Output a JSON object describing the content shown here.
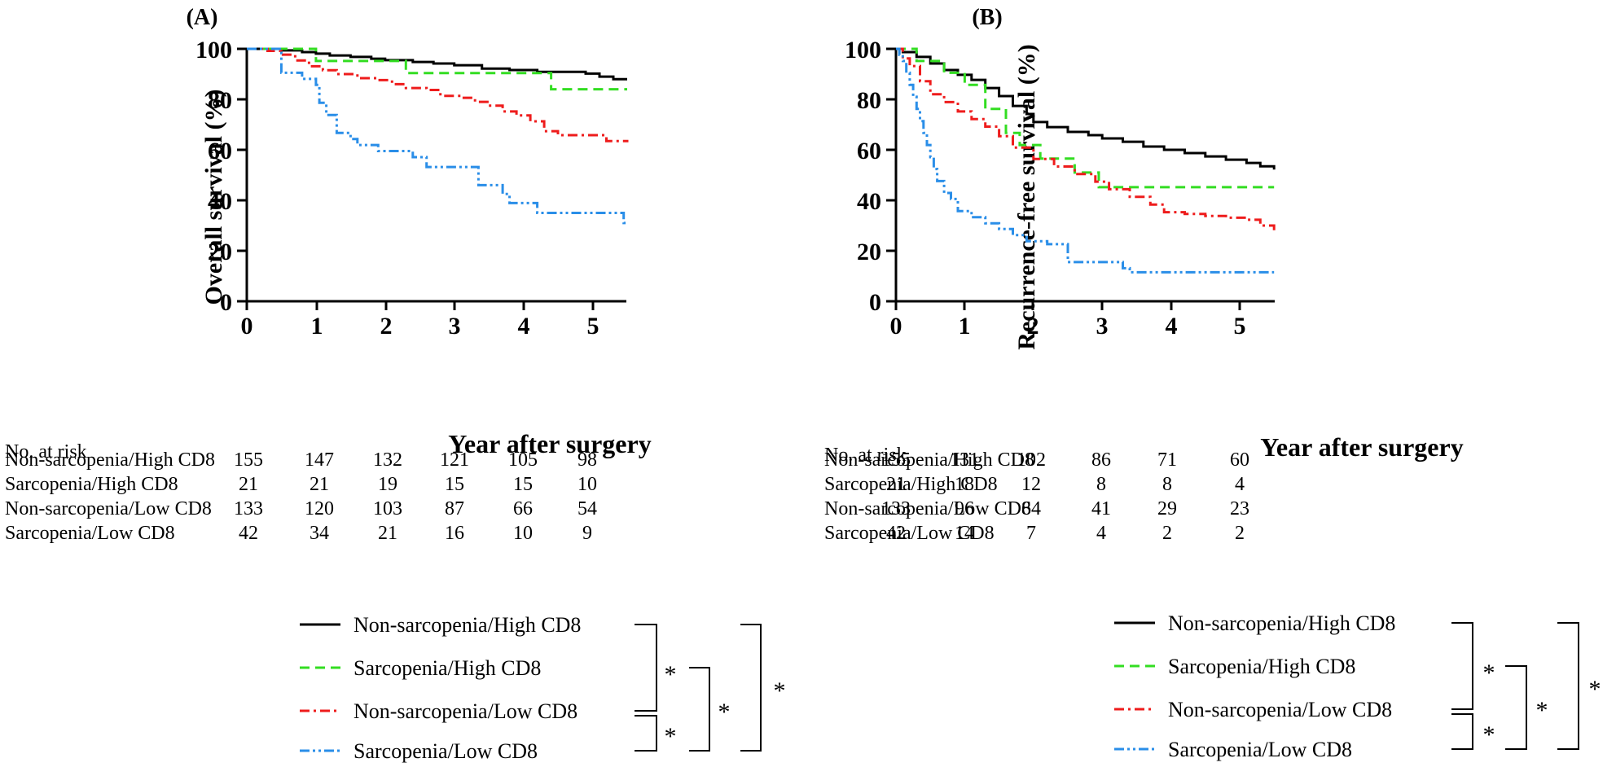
{
  "colors": {
    "axis": "#000000",
    "nonsarc_high": "#000000",
    "sarc_high": "#33dd22",
    "nonsarc_low": "#ee1c1c",
    "sarc_low": "#2a8ee8"
  },
  "risk_header": "No. at risk",
  "significance_mark": "*",
  "chart_data": [
    {
      "type": "line",
      "subtype": "kaplan-meier",
      "panel_label": "(A)",
      "xlabel": "Year after surgery",
      "ylabel": "Overall survival (%)",
      "xlim": [
        0,
        5.5
      ],
      "ylim": [
        0,
        100
      ],
      "x_ticks": [
        "0",
        "1",
        "2",
        "3",
        "4",
        "5"
      ],
      "y_ticks": [
        "0",
        "20",
        "40",
        "60",
        "80",
        "100"
      ],
      "series": [
        {
          "name": "Non-sarcopenia/High CD8",
          "style": "solid",
          "color": "#000000",
          "x": [
            0,
            0.3,
            0.5,
            0.8,
            1.0,
            1.2,
            1.5,
            1.8,
            2.0,
            2.4,
            2.7,
            3.0,
            3.4,
            3.8,
            4.2,
            4.7,
            4.9,
            5.1,
            5.3,
            5.5
          ],
          "y": [
            100,
            100,
            99.4,
            98.7,
            98.1,
            97.4,
            96.8,
            96.1,
            95.5,
            94.8,
            94.2,
            93.5,
            92.2,
            91.6,
            90.9,
            90.9,
            90.2,
            89.0,
            88.0,
            88.0
          ]
        },
        {
          "name": "Sarcopenia/High CD8",
          "style": "dash",
          "color": "#33dd22",
          "x": [
            0,
            1.0,
            1.0,
            2.3,
            2.3,
            4.4,
            4.4,
            5.5
          ],
          "y": [
            100,
            100,
            95.2,
            95.2,
            90.4,
            90.4,
            84.0,
            84.0
          ]
        },
        {
          "name": "Non-sarcopenia/Low CD8",
          "style": "dashdot",
          "color": "#ee1c1c",
          "x": [
            0,
            0.3,
            0.5,
            0.7,
            0.9,
            1.1,
            1.3,
            1.6,
            1.9,
            2.1,
            2.3,
            2.6,
            2.8,
            3.1,
            3.3,
            3.5,
            3.7,
            3.9,
            4.1,
            4.3,
            4.5,
            5.2,
            5.5
          ],
          "y": [
            100,
            99.2,
            97.7,
            95.4,
            93.1,
            91.5,
            90.0,
            88.4,
            87.6,
            86.0,
            84.5,
            83.7,
            81.4,
            80.6,
            79.0,
            77.5,
            75.2,
            73.6,
            71.3,
            67.4,
            65.8,
            63.5,
            63.0
          ]
        },
        {
          "name": "Sarcopenia/Low CD8",
          "style": "dashdotdot",
          "color": "#2a8ee8",
          "x": [
            0,
            0.4,
            0.5,
            0.8,
            1.0,
            1.05,
            1.15,
            1.3,
            1.5,
            1.6,
            1.9,
            2.3,
            2.4,
            2.6,
            3.1,
            3.35,
            3.6,
            3.7,
            3.8,
            4.0,
            4.2,
            5.4,
            5.45,
            5.5
          ],
          "y": [
            100,
            100,
            90.5,
            88.1,
            85.7,
            78.6,
            73.8,
            66.7,
            64.3,
            61.9,
            59.5,
            59.5,
            57.1,
            53.2,
            53.2,
            46.0,
            46.0,
            42.5,
            38.9,
            38.9,
            35.0,
            35.0,
            31.0,
            31.0
          ]
        }
      ],
      "risk_table": {
        "rows": [
          {
            "label": "Non-sarcopenia/High CD8",
            "values": [
              "155",
              "147",
              "132",
              "121",
              "105",
              "98"
            ]
          },
          {
            "label": "Sarcopenia/High CD8",
            "values": [
              "21",
              "21",
              "19",
              "15",
              "15",
              "10"
            ]
          },
          {
            "label": "Non-sarcopenia/Low CD8",
            "values": [
              "133",
              "120",
              "103",
              "87",
              "66",
              "54"
            ]
          },
          {
            "label": "Sarcopenia/Low CD8",
            "values": [
              "42",
              "34",
              "21",
              "16",
              "10",
              "9"
            ]
          }
        ]
      }
    },
    {
      "type": "line",
      "subtype": "kaplan-meier",
      "panel_label": "(B)",
      "xlabel": "Year after surgery",
      "ylabel": "Recurrence-free survival (%)",
      "xlim": [
        0,
        5.5
      ],
      "ylim": [
        0,
        100
      ],
      "x_ticks": [
        "0",
        "1",
        "2",
        "3",
        "4",
        "5"
      ],
      "y_ticks": [
        "0",
        "20",
        "40",
        "60",
        "80",
        "100"
      ],
      "series": [
        {
          "name": "Non-sarcopenia/High CD8",
          "style": "solid",
          "color": "#000000",
          "x": [
            0,
            0.1,
            0.3,
            0.5,
            0.7,
            0.9,
            1.1,
            1.3,
            1.5,
            1.7,
            1.9,
            2.0,
            2.2,
            2.5,
            2.8,
            3.0,
            3.3,
            3.6,
            3.9,
            4.2,
            4.5,
            4.8,
            5.1,
            5.3,
            5.5
          ],
          "y": [
            100,
            98.7,
            96.8,
            94.2,
            91.6,
            89.7,
            87.7,
            84.5,
            81.3,
            77.4,
            74.2,
            71.0,
            69.0,
            67.1,
            65.8,
            64.5,
            63.2,
            61.3,
            60.0,
            58.7,
            57.4,
            56.1,
            54.8,
            53.5,
            52.2
          ]
        },
        {
          "name": "Sarcopenia/High CD8",
          "style": "dash",
          "color": "#33dd22",
          "x": [
            0,
            0.3,
            0.3,
            0.7,
            0.7,
            1.0,
            1.0,
            1.3,
            1.3,
            1.6,
            1.6,
            1.8,
            1.8,
            2.1,
            2.1,
            2.6,
            2.6,
            2.95,
            2.95,
            5.5
          ],
          "y": [
            100,
            100,
            95.2,
            95.2,
            90.5,
            90.5,
            85.7,
            85.7,
            76.2,
            76.2,
            66.7,
            66.7,
            61.9,
            61.9,
            56.5,
            56.5,
            51.0,
            51.0,
            45.2,
            45.2
          ]
        },
        {
          "name": "Non-sarcopenia/Low CD8",
          "style": "dashdot",
          "color": "#ee1c1c",
          "x": [
            0,
            0.1,
            0.2,
            0.35,
            0.5,
            0.7,
            0.9,
            1.1,
            1.3,
            1.5,
            1.7,
            2.0,
            2.3,
            2.6,
            2.9,
            3.1,
            3.4,
            3.7,
            3.9,
            4.2,
            4.5,
            4.8,
            5.1,
            5.3,
            5.5
          ],
          "y": [
            100,
            96.2,
            93.2,
            87.2,
            82.0,
            78.9,
            75.2,
            72.2,
            69.2,
            65.4,
            60.9,
            56.4,
            53.4,
            50.4,
            47.4,
            44.4,
            41.4,
            38.3,
            35.3,
            34.6,
            33.8,
            33.1,
            32.3,
            30.0,
            27.8
          ]
        },
        {
          "name": "Sarcopenia/Low CD8",
          "style": "dashdotdot",
          "color": "#2a8ee8",
          "x": [
            0,
            0.05,
            0.1,
            0.15,
            0.2,
            0.25,
            0.3,
            0.35,
            0.4,
            0.45,
            0.5,
            0.55,
            0.6,
            0.7,
            0.8,
            0.9,
            1.1,
            1.3,
            1.5,
            1.7,
            1.9,
            2.2,
            2.5,
            2.9,
            3.3,
            3.4,
            5.5
          ],
          "y": [
            100,
            97.6,
            95.2,
            90.5,
            85.7,
            81.0,
            76.2,
            71.4,
            66.7,
            61.9,
            57.1,
            52.4,
            47.6,
            42.9,
            40.5,
            35.7,
            33.3,
            30.9,
            28.6,
            26.2,
            23.8,
            22.6,
            15.5,
            15.5,
            13.1,
            11.5,
            11.5
          ]
        }
      ],
      "risk_table": {
        "rows": [
          {
            "label": "Non-sarcopenia/High CD8",
            "values": [
              "155",
              "131",
              "102",
              "86",
              "71",
              "60"
            ]
          },
          {
            "label": "Sarcopenia/High CD8",
            "values": [
              "21",
              "18",
              "12",
              "8",
              "8",
              "4"
            ]
          },
          {
            "label": "Non-sarcopenia/Low CD8",
            "values": [
              "133",
              "96",
              "64",
              "41",
              "29",
              "23"
            ]
          },
          {
            "label": "Sarcopenia/Low CD8",
            "values": [
              "42",
              "14",
              "7",
              "4",
              "2",
              "2"
            ]
          }
        ]
      }
    }
  ]
}
